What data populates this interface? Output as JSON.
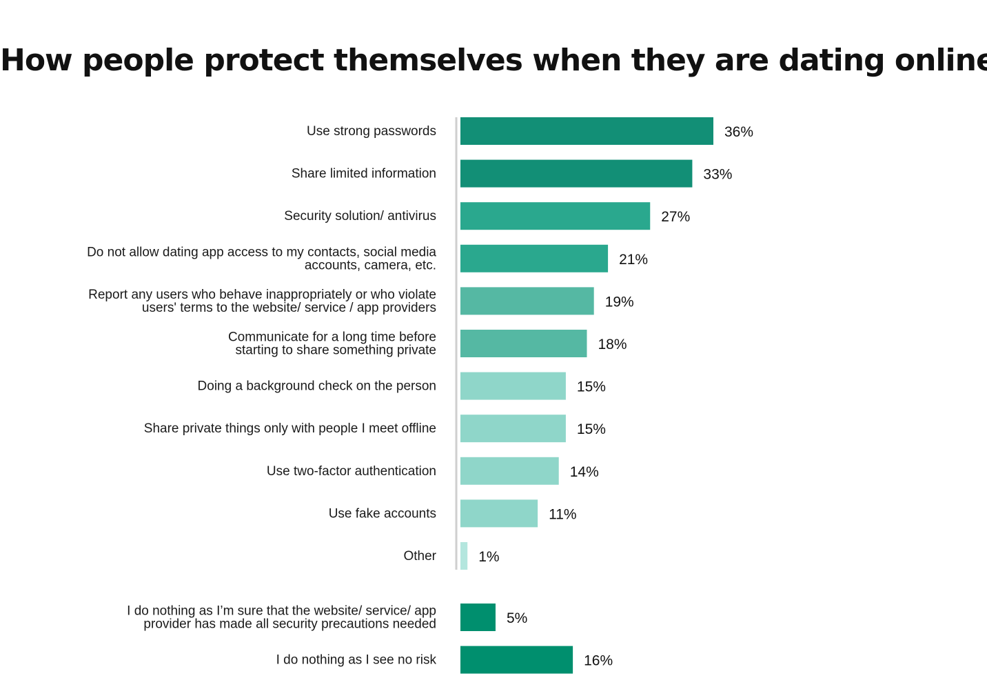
{
  "chart_data": {
    "type": "bar",
    "orientation": "horizontal",
    "title": "How people protect themselves when they are dating online",
    "value_suffix": "%",
    "xlim": [
      0,
      36
    ],
    "groups": [
      {
        "categories": [
          [
            "Use strong passwords"
          ],
          [
            "Share limited information"
          ],
          [
            "Security solution/ antivirus"
          ],
          [
            "Do not allow dating app access to my contacts, social media",
            "accounts, camera, etc."
          ],
          [
            "Report any users who behave inappropriately or who violate",
            "users' terms to the website/ service / app providers"
          ],
          [
            "Communicate for a long time before",
            "starting to share something private"
          ],
          [
            "Doing a background check on the person"
          ],
          [
            "Share private things only with people I meet offline"
          ],
          [
            "Use two-factor authentication"
          ],
          [
            "Use fake accounts"
          ],
          [
            "Other"
          ]
        ],
        "values": [
          36,
          33,
          27,
          21,
          19,
          18,
          15,
          15,
          14,
          11,
          1
        ],
        "colors": [
          "#128f76",
          "#128f76",
          "#2aa88e",
          "#2aa88e",
          "#55b8a3",
          "#55b8a3",
          "#8fd6c9",
          "#8fd6c9",
          "#8fd6c9",
          "#8fd6c9",
          "#b4e6de"
        ]
      },
      {
        "categories": [
          [
            "I do nothing as I’m sure that the website/ service/ app",
            "provider has made all security precautions needed"
          ],
          [
            "I do nothing as I see no risk"
          ]
        ],
        "values": [
          5,
          16
        ],
        "colors": [
          "#008f6e",
          "#008f6e"
        ]
      }
    ],
    "grid": false,
    "legend": "none"
  }
}
